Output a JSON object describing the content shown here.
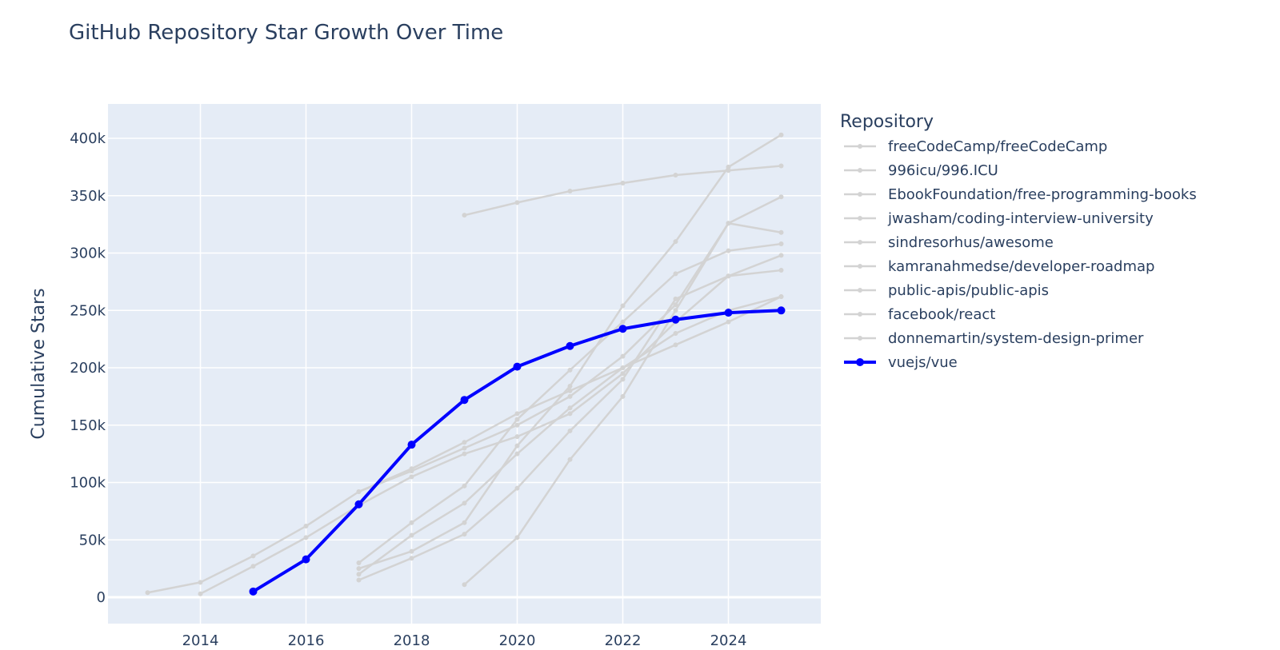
{
  "chart_data": {
    "type": "line",
    "title": "GitHub Repository Star Growth Over Time",
    "xlabel": "",
    "ylabel": "Cumulative Stars",
    "xlim": [
      2012.25,
      2025.75
    ],
    "ylim": [
      -23000,
      430000
    ],
    "xticks": [
      2014,
      2016,
      2018,
      2020,
      2022,
      2024
    ],
    "yticks": [
      0,
      50000,
      100000,
      150000,
      200000,
      250000,
      300000,
      350000,
      400000
    ],
    "ytick_labels": [
      "0",
      "50k",
      "100k",
      "150k",
      "200k",
      "250k",
      "300k",
      "350k",
      "400k"
    ],
    "grid": true,
    "legend_title": "Repository",
    "legend_position": "right",
    "highlight_color": "#0000ff",
    "muted_color": "#d3d3d3",
    "plot_bg": "#e5ecf6",
    "series": [
      {
        "name": "freeCodeCamp/freeCodeCamp",
        "highlight": false,
        "x": [
          2014,
          2015,
          2016,
          2017,
          2018,
          2019,
          2020,
          2021,
          2022,
          2023,
          2024,
          2025
        ],
        "y": [
          3000,
          27000,
          52000,
          80000,
          105000,
          125000,
          140000,
          160000,
          195000,
          240000,
          280000,
          298000
        ]
      },
      {
        "name": "996icu/996.ICU",
        "highlight": false,
        "x": [
          2019,
          2020,
          2021,
          2022,
          2023,
          2024,
          2025
        ],
        "y": [
          333000,
          344000,
          354000,
          361000,
          368000,
          372000,
          376000
        ]
      },
      {
        "name": "EbookFoundation/free-programming-books",
        "highlight": false,
        "x": [
          2013,
          2014,
          2015,
          2016,
          2017,
          2018,
          2019,
          2020,
          2021,
          2022,
          2023,
          2024,
          2025
        ],
        "y": [
          4000,
          13000,
          36000,
          62000,
          92000,
          110000,
          130000,
          150000,
          175000,
          210000,
          255000,
          326000,
          349000
        ]
      },
      {
        "name": "jwasham/coding-interview-university",
        "highlight": false,
        "x": [
          2017,
          2018,
          2019,
          2020,
          2021,
          2022,
          2023,
          2024,
          2025
        ],
        "y": [
          30000,
          65000,
          97000,
          155000,
          198000,
          240000,
          282000,
          302000,
          308000
        ]
      },
      {
        "name": "sindresorhus/awesome",
        "highlight": false,
        "x": [
          2017,
          2018,
          2019,
          2020,
          2021,
          2022,
          2023,
          2024,
          2025
        ],
        "y": [
          20000,
          54000,
          82000,
          125000,
          165000,
          200000,
          230000,
          250000,
          262000
        ]
      },
      {
        "name": "kamranahmedse/developer-roadmap",
        "highlight": false,
        "x": [
          2017,
          2018,
          2019,
          2020,
          2021,
          2022,
          2023,
          2024,
          2025
        ],
        "y": [
          15000,
          34000,
          55000,
          95000,
          145000,
          190000,
          260000,
          280000,
          285000
        ]
      },
      {
        "name": "public-apis/public-apis",
        "highlight": false,
        "x": [
          2019,
          2020,
          2021,
          2022,
          2023,
          2024,
          2025
        ],
        "y": [
          11000,
          52000,
          120000,
          175000,
          250000,
          326000,
          318000
        ]
      },
      {
        "name": "facebook/react",
        "highlight": false,
        "x": [
          2017,
          2018,
          2019,
          2020,
          2021,
          2022,
          2023,
          2024,
          2025
        ],
        "y": [
          92000,
          112000,
          135000,
          160000,
          180000,
          200000,
          220000,
          240000,
          262000
        ]
      },
      {
        "name": "donnemartin/system-design-primer",
        "highlight": false,
        "x": [
          2017,
          2018,
          2019,
          2020,
          2021,
          2022,
          2023,
          2024,
          2025
        ],
        "y": [
          25000,
          40000,
          65000,
          132000,
          184000,
          254000,
          310000,
          375000,
          403000
        ]
      },
      {
        "name": "vuejs/vue",
        "highlight": true,
        "x": [
          2015,
          2016,
          2017,
          2018,
          2019,
          2020,
          2021,
          2022,
          2023,
          2024,
          2025
        ],
        "y": [
          5000,
          33000,
          81000,
          133000,
          172000,
          201000,
          219000,
          234000,
          242000,
          248000,
          250000
        ]
      }
    ]
  }
}
